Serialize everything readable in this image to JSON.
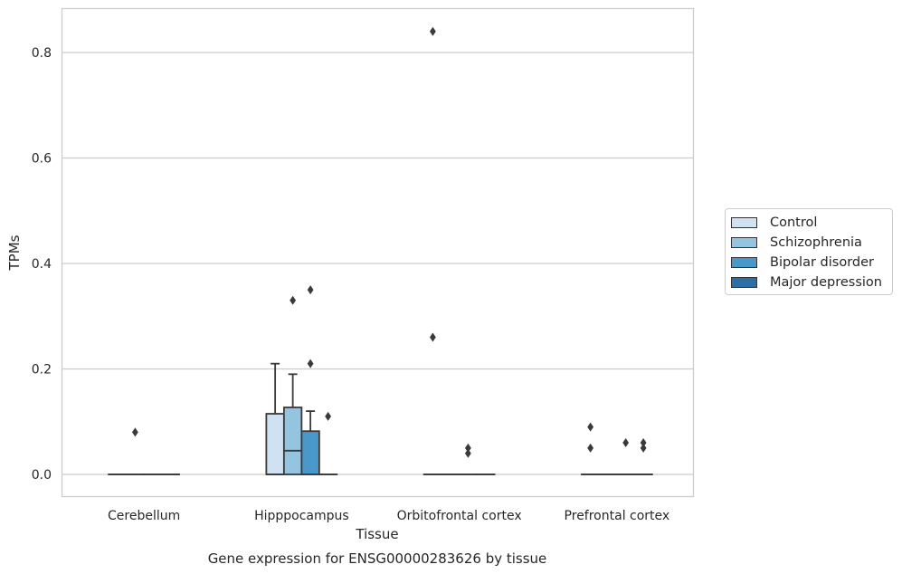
{
  "chart_data": {
    "type": "box",
    "xlabel": "Tissue",
    "ylabel": "TPMs",
    "caption": "Gene expression for ENSG00000283626 by tissue",
    "categories": [
      "Cerebellum",
      "Hipppocampus",
      "Orbitofrontal cortex",
      "Prefrontal cortex"
    ],
    "yticks": [
      "0.0",
      "0.2",
      "0.4",
      "0.6",
      "0.8"
    ],
    "ylim": [
      -0.04,
      0.885
    ],
    "grid": true,
    "legend_position": "right",
    "series": [
      {
        "name": "Control",
        "color": "#d0e1f2",
        "boxes": [
          {
            "category": "Cerebellum",
            "q1": 0,
            "median": 0,
            "q3": 0,
            "whisker_low": 0,
            "whisker_high": 0,
            "outliers": []
          },
          {
            "category": "Hipppocampus",
            "q1": 0,
            "median": 0,
            "q3": 0.115,
            "whisker_low": 0,
            "whisker_high": 0.21,
            "outliers": []
          },
          {
            "category": "Orbitofrontal cortex",
            "q1": 0,
            "median": 0,
            "q3": 0,
            "whisker_low": 0,
            "whisker_high": 0,
            "outliers": [
              0.84,
              0.26
            ]
          },
          {
            "category": "Prefrontal cortex",
            "q1": 0,
            "median": 0,
            "q3": 0,
            "whisker_low": 0,
            "whisker_high": 0,
            "outliers": [
              0.09,
              0.05
            ]
          }
        ]
      },
      {
        "name": "Schizophrenia",
        "color": "#94c4df",
        "boxes": [
          {
            "category": "Cerebellum",
            "q1": 0,
            "median": 0,
            "q3": 0,
            "whisker_low": 0,
            "whisker_high": 0,
            "outliers": [
              0.08
            ]
          },
          {
            "category": "Hipppocampus",
            "q1": 0,
            "median": 0.045,
            "q3": 0.127,
            "whisker_low": 0,
            "whisker_high": 0.19,
            "outliers": [
              0.33
            ]
          },
          {
            "category": "Orbitofrontal cortex",
            "q1": 0,
            "median": 0,
            "q3": 0,
            "whisker_low": 0,
            "whisker_high": 0,
            "outliers": []
          },
          {
            "category": "Prefrontal cortex",
            "q1": 0,
            "median": 0,
            "q3": 0,
            "whisker_low": 0,
            "whisker_high": 0,
            "outliers": []
          }
        ]
      },
      {
        "name": "Bipolar disorder",
        "color": "#4a98c9",
        "boxes": [
          {
            "category": "Cerebellum",
            "q1": 0,
            "median": 0,
            "q3": 0,
            "whisker_low": 0,
            "whisker_high": 0,
            "outliers": []
          },
          {
            "category": "Hipppocampus",
            "q1": 0,
            "median": 0,
            "q3": 0.082,
            "whisker_low": 0,
            "whisker_high": 0.12,
            "outliers": [
              0.35,
              0.21
            ]
          },
          {
            "category": "Orbitofrontal cortex",
            "q1": 0,
            "median": 0,
            "q3": 0,
            "whisker_low": 0,
            "whisker_high": 0,
            "outliers": [
              0.05,
              0.04
            ]
          },
          {
            "category": "Prefrontal cortex",
            "q1": 0,
            "median": 0,
            "q3": 0,
            "whisker_low": 0,
            "whisker_high": 0,
            "outliers": [
              0.06
            ]
          }
        ]
      },
      {
        "name": "Major depression",
        "color": "#2e6ea8",
        "boxes": [
          {
            "category": "Cerebellum",
            "q1": 0,
            "median": 0,
            "q3": 0,
            "whisker_low": 0,
            "whisker_high": 0,
            "outliers": []
          },
          {
            "category": "Hipppocampus",
            "q1": 0,
            "median": 0,
            "q3": 0,
            "whisker_low": 0,
            "whisker_high": 0,
            "outliers": [
              0.11
            ]
          },
          {
            "category": "Orbitofrontal cortex",
            "q1": 0,
            "median": 0,
            "q3": 0,
            "whisker_low": 0,
            "whisker_high": 0,
            "outliers": []
          },
          {
            "category": "Prefrontal cortex",
            "q1": 0,
            "median": 0,
            "q3": 0,
            "whisker_low": 0,
            "whisker_high": 0,
            "outliers": [
              0.06,
              0.05
            ]
          }
        ]
      }
    ]
  }
}
